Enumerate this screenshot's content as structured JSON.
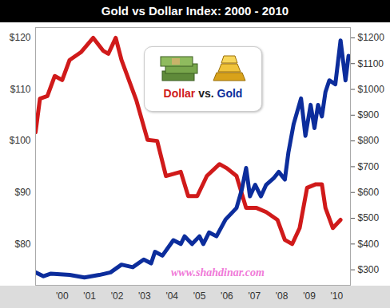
{
  "chart_data": {
    "type": "line",
    "title": "Gold vs Dollar Index: 2000 - 2010",
    "xlim": [
      1999.03,
      2010.5
    ],
    "xticks": [
      {
        "value": 2000,
        "label": "'00"
      },
      {
        "value": 2001,
        "label": "'01"
      },
      {
        "value": 2002,
        "label": "'02"
      },
      {
        "value": 2003,
        "label": "'03"
      },
      {
        "value": 2004,
        "label": "'04"
      },
      {
        "value": 2005,
        "label": "'05"
      },
      {
        "value": 2006,
        "label": "'06"
      },
      {
        "value": 2007,
        "label": "'07"
      },
      {
        "value": 2008,
        "label": "'08"
      },
      {
        "value": 2009,
        "label": "'09"
      },
      {
        "value": 2010,
        "label": "'10"
      }
    ],
    "ylim": [
      72,
      122
    ],
    "yticks": [
      {
        "value": 80,
        "label": "$80"
      },
      {
        "value": 90,
        "label": "$90"
      },
      {
        "value": 100,
        "label": "$100"
      },
      {
        "value": 110,
        "label": "$110"
      },
      {
        "value": 120,
        "label": "$120"
      }
    ],
    "y2lim": [
      240,
      1240
    ],
    "y2ticks": [
      {
        "value": 300,
        "label": "$300"
      },
      {
        "value": 400,
        "label": "$400"
      },
      {
        "value": 500,
        "label": "$500"
      },
      {
        "value": 600,
        "label": "$600"
      },
      {
        "value": 700,
        "label": "$700"
      },
      {
        "value": 800,
        "label": "$800"
      },
      {
        "value": 900,
        "label": "$900"
      },
      {
        "value": 1000,
        "label": "$1000"
      },
      {
        "value": 1100,
        "label": "$1100"
      },
      {
        "value": 1200,
        "label": "$1200"
      }
    ],
    "grid": false,
    "legend": "top",
    "annotations": [
      "vs.",
      "www.shahdinar.com"
    ],
    "series": [
      {
        "name": "Dollar",
        "color": "#d01a1a",
        "x": [
          1999.03,
          1999.19,
          1999.46,
          1999.73,
          2000.0,
          2000.27,
          2000.68,
          2001.13,
          2001.49,
          2001.68,
          2001.95,
          2002.16,
          2002.7,
          2003.11,
          2003.46,
          2003.78,
          2004.32,
          2004.59,
          2004.92,
          2005.27,
          2005.73,
          2006.0,
          2006.35,
          2006.7,
          2007.08,
          2007.43,
          2007.84,
          2008.11,
          2008.38,
          2008.65,
          2008.92,
          2009.24,
          2009.46,
          2009.59,
          2009.86,
          2010.14
        ],
        "values": [
          101.7,
          108.2,
          108.7,
          112.6,
          111.8,
          115.7,
          117.2,
          120,
          117.5,
          116.9,
          120,
          115.7,
          107.9,
          100.2,
          100,
          93.2,
          94,
          89.3,
          89.3,
          93.2,
          95.5,
          94.7,
          93.2,
          87,
          87,
          86.2,
          84.7,
          80.8,
          80,
          83.1,
          90.9,
          91.6,
          91.6,
          87,
          83.1,
          84.7
        ]
      },
      {
        "name": "Gold",
        "color": "#0c2d9c",
        "axis": "y2",
        "x": [
          1999.03,
          1999.32,
          1999.59,
          2000.27,
          2000.81,
          2001.35,
          2001.76,
          2002.16,
          2002.57,
          2002.97,
          2003.24,
          2003.38,
          2003.65,
          2004.05,
          2004.32,
          2004.46,
          2004.73,
          2005.0,
          2005.14,
          2005.35,
          2005.62,
          2005.95,
          2006.35,
          2006.54,
          2006.7,
          2006.84,
          2007.03,
          2007.24,
          2007.43,
          2007.7,
          2007.89,
          2008.11,
          2008.24,
          2008.43,
          2008.7,
          2008.86,
          2009.05,
          2009.19,
          2009.32,
          2009.46,
          2009.59,
          2009.73,
          2009.95,
          2010.14,
          2010.32,
          2010.43
        ],
        "values": [
          290,
          275,
          285,
          280,
          270,
          280,
          290,
          320,
          310,
          340,
          325,
          370,
          355,
          415,
          400,
          430,
          400,
          430,
          400,
          445,
          430,
          495,
          540,
          610,
          695,
          585,
          630,
          585,
          630,
          655,
          680,
          650,
          755,
          865,
          965,
          820,
          940,
          850,
          940,
          895,
          990,
          1035,
          1020,
          1190,
          1035,
          1130
        ]
      }
    ]
  }
}
